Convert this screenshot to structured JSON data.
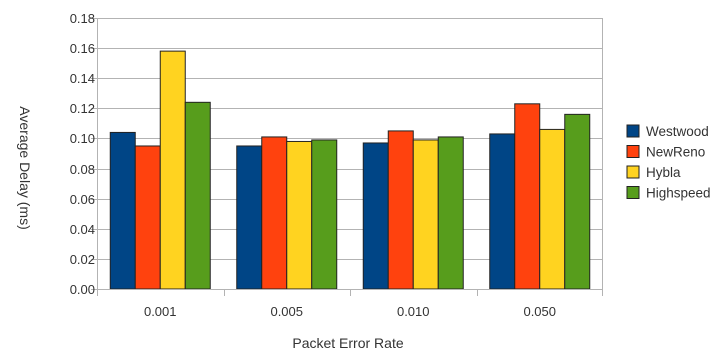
{
  "chart_data": {
    "type": "bar",
    "title": "",
    "xlabel": "Packet Error Rate",
    "ylabel": "Average Delay (ms)",
    "categories": [
      "0.001",
      "0.005",
      "0.010",
      "0.050"
    ],
    "series": [
      {
        "name": "Westwood",
        "color": "#004586",
        "values": [
          0.104,
          0.095,
          0.097,
          0.103
        ]
      },
      {
        "name": "NewReno",
        "color": "#ff420e",
        "values": [
          0.095,
          0.101,
          0.105,
          0.123
        ]
      },
      {
        "name": "Hybla",
        "color": "#ffd320",
        "values": [
          0.158,
          0.098,
          0.099,
          0.106
        ]
      },
      {
        "name": "Highspeed",
        "color": "#579d1c",
        "values": [
          0.124,
          0.099,
          0.101,
          0.116
        ]
      }
    ],
    "ylim": [
      0,
      0.18
    ],
    "yticks": [
      "0.00",
      "0.02",
      "0.04",
      "0.06",
      "0.08",
      "0.10",
      "0.12",
      "0.14",
      "0.16",
      "0.18"
    ],
    "grid": true,
    "legend_position": "right"
  }
}
